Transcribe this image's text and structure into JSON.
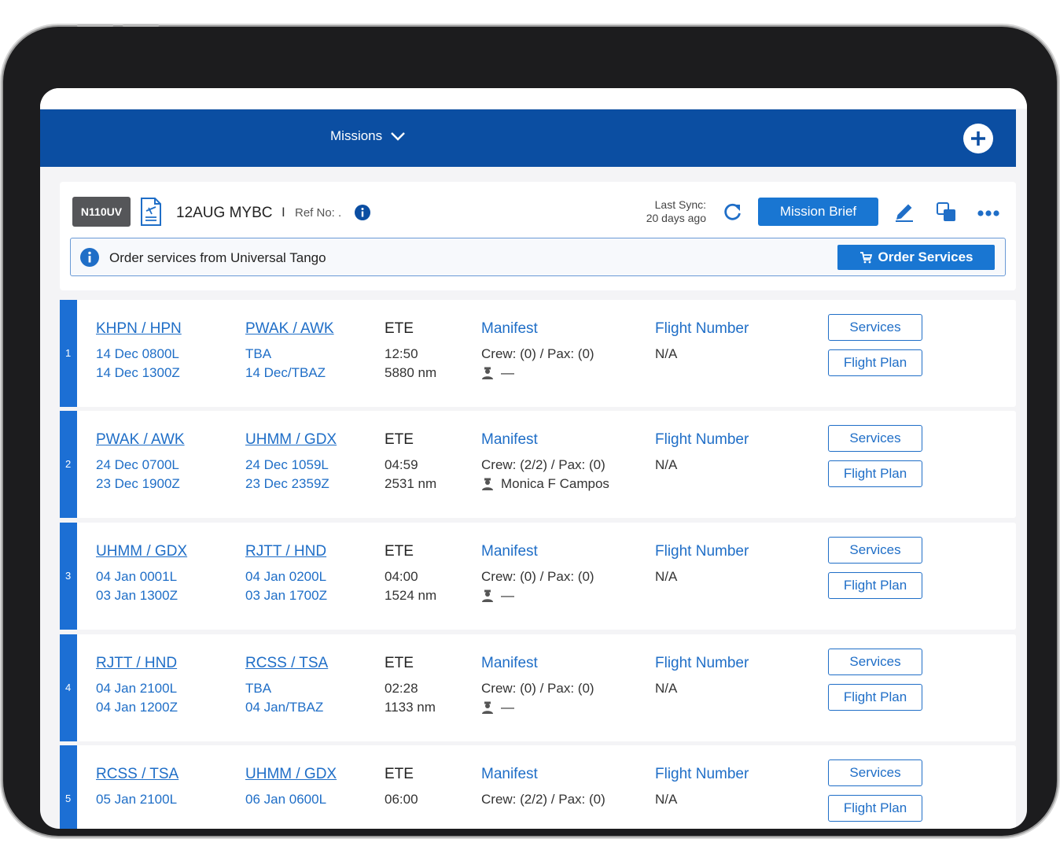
{
  "topbar": {
    "title": "Missions"
  },
  "header": {
    "tail": "N110UV",
    "trip_name": "12AUG MYBC",
    "separator": "I",
    "ref_label": "Ref No: .",
    "sync_label": "Last Sync:",
    "sync_ago": "20 days ago",
    "mission_brief": "Mission Brief"
  },
  "order_banner": {
    "text": "Order services from Universal Tango",
    "button": "Order Services"
  },
  "labels": {
    "ete": "ETE",
    "manifest": "Manifest",
    "flight_number": "Flight Number",
    "services": "Services",
    "flight_plan": "Flight Plan"
  },
  "legs": [
    {
      "num": "1",
      "from": "KHPN / HPN",
      "from_local": "14 Dec 0800L",
      "from_utc": "14 Dec 1300Z",
      "to": "PWAK / AWK",
      "to_local": "TBA",
      "to_utc": "14 Dec/TBAZ",
      "ete": "12:50",
      "distance": "5880 nm",
      "crew_pax": "Crew: (0) / Pax: (0)",
      "crew_name": "—",
      "flight_number": "N/A"
    },
    {
      "num": "2",
      "from": "PWAK / AWK",
      "from_local": "24 Dec 0700L",
      "from_utc": "23 Dec 1900Z",
      "to": "UHMM / GDX",
      "to_local": "24 Dec 1059L",
      "to_utc": "23 Dec 2359Z",
      "ete": "04:59",
      "distance": "2531 nm",
      "crew_pax": "Crew: (2/2) / Pax: (0)",
      "crew_name": "Monica F Campos",
      "flight_number": "N/A"
    },
    {
      "num": "3",
      "from": "UHMM / GDX",
      "from_local": "04 Jan 0001L",
      "from_utc": "03 Jan 1300Z",
      "to": "RJTT / HND",
      "to_local": "04 Jan 0200L",
      "to_utc": "03 Jan 1700Z",
      "ete": "04:00",
      "distance": "1524 nm",
      "crew_pax": "Crew: (0) / Pax: (0)",
      "crew_name": "—",
      "flight_number": "N/A"
    },
    {
      "num": "4",
      "from": "RJTT / HND",
      "from_local": "04 Jan 2100L",
      "from_utc": "04 Jan 1200Z",
      "to": "RCSS / TSA",
      "to_local": "TBA",
      "to_utc": "04 Jan/TBAZ",
      "ete": "02:28",
      "distance": "1133 nm",
      "crew_pax": "Crew: (0) / Pax: (0)",
      "crew_name": "—",
      "flight_number": "N/A"
    },
    {
      "num": "5",
      "from": "RCSS / TSA",
      "from_local": "05 Jan 2100L",
      "from_utc": "",
      "to": "UHMM / GDX",
      "to_local": "06 Jan 0600L",
      "to_utc": "",
      "ete": "06:00",
      "distance": "",
      "crew_pax": "Crew: (2/2) / Pax: (0)",
      "crew_name": "",
      "flight_number": "N/A"
    }
  ]
}
